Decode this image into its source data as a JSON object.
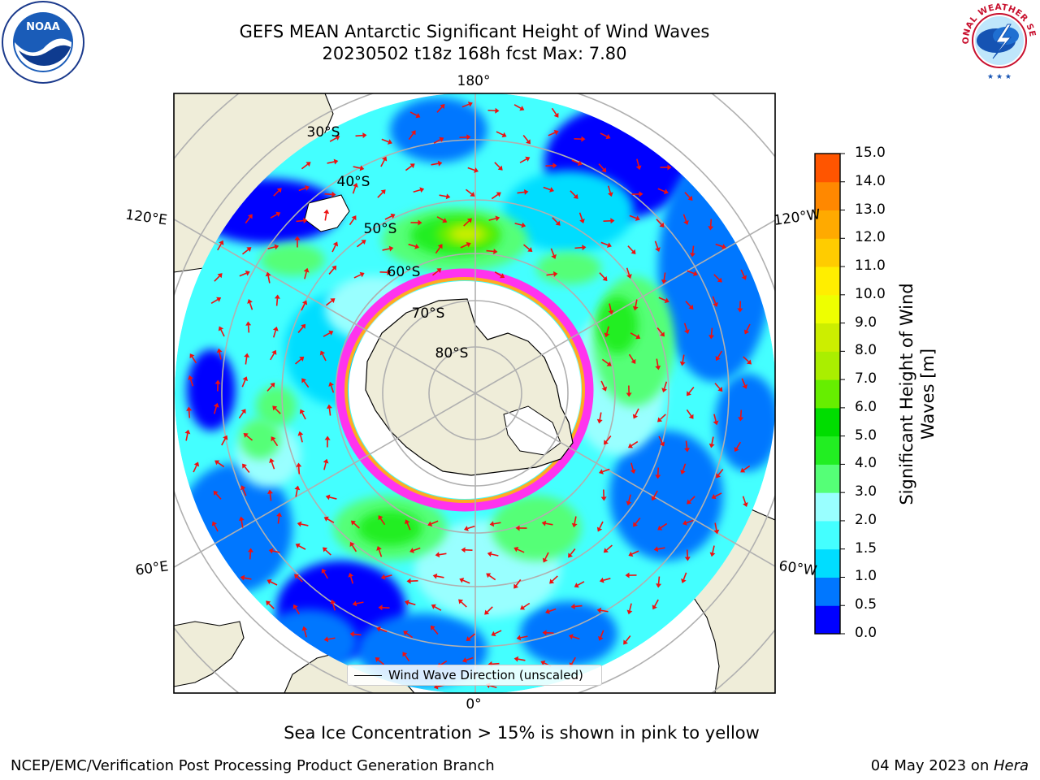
{
  "title": {
    "line1": "GEFS MEAN Antarctic Significant Height of Wind Waves",
    "line2": "20230502 t18z 168h fcst   Max: 7.80"
  },
  "logos": {
    "noaa": {
      "center_text": "NOAA",
      "ring_text": "NATIONAL OCEANIC AND ATMOSPHERIC ADMINISTRATION · U.S. DEPARTMENT OF COMMERCE"
    },
    "nws": {
      "ring_text": "NATIONAL WEATHER SERVICE"
    }
  },
  "map": {
    "projection": "south-polar-stereographic",
    "longitude_labels": [
      "180°",
      "120°E",
      "120°W",
      "60°E",
      "60°W",
      "0°"
    ],
    "latitude_labels": [
      "30°S",
      "40°S",
      "50°S",
      "60°S",
      "70°S",
      "80°S"
    ],
    "colors": {
      "land": "#efedd9",
      "grid": "#b0b0b0",
      "arrow": "#ee1111",
      "sea_ice": [
        "#ff33ee",
        "#ffaa22",
        "#ffff66"
      ]
    },
    "legend_label": "Wind Wave Direction (unscaled)"
  },
  "colorbar": {
    "label": "Significant Height of Wind Waves [m]",
    "label_line1": "Significant Height of Wind",
    "label_line2": "Waves [m]",
    "ticks": [
      "0.0",
      "0.5",
      "1.0",
      "1.5",
      "2.0",
      "3.0",
      "4.0",
      "5.0",
      "6.0",
      "7.0",
      "8.0",
      "9.0",
      "10.0",
      "11.0",
      "12.0",
      "13.0",
      "14.0",
      "15.0"
    ],
    "colors": [
      "#0000ff",
      "#0077ff",
      "#00ddff",
      "#44ffff",
      "#99ffff",
      "#55ff77",
      "#22ee22",
      "#00dd00",
      "#66ee00",
      "#aaee00",
      "#ccee00",
      "#eeff00",
      "#ffee00",
      "#ffcc00",
      "#ffaa00",
      "#ff8800",
      "#ff5500",
      "#ff2200"
    ]
  },
  "chart_data": {
    "type": "heatmap",
    "title": "GEFS MEAN Antarctic Significant Height of Wind Waves",
    "subtitle": "20230502 t18z 168h fcst   Max: 7.80",
    "variable": "Significant Height of Wind Waves [m]",
    "range": [
      0.0,
      15.0
    ],
    "max_value": 7.8,
    "cycle": "20230502 t18z",
    "forecast_hour": "168h",
    "legend": "Wind Wave Direction (unscaled)"
  },
  "caption": "Sea Ice Concentration > 15% is shown in pink to yellow",
  "footer": {
    "left": "NCEP/EMC/Verification Post Processing Product Generation Branch",
    "right_date": "04 May 2023 on ",
    "right_host": "Hera"
  }
}
